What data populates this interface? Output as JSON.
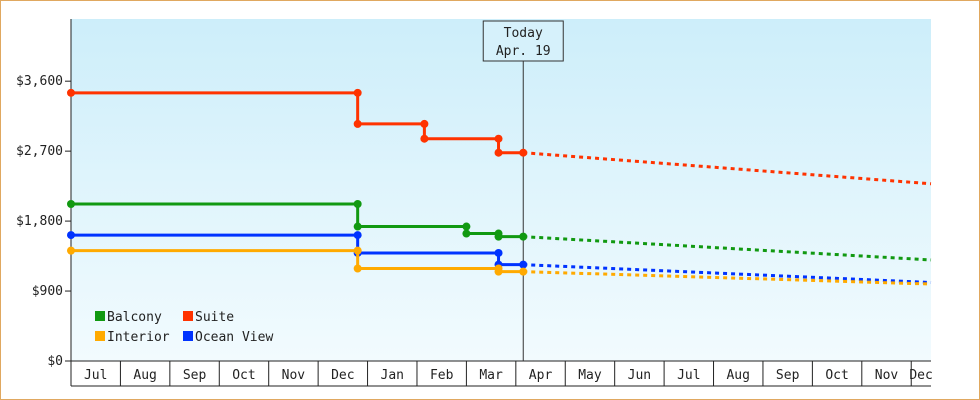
{
  "chart_data": {
    "type": "line",
    "title": "",
    "xlabel": "",
    "ylabel": "",
    "x_ticks": [
      "Jul",
      "Aug",
      "Sep",
      "Oct",
      "Nov",
      "Dec",
      "Jan",
      "Feb",
      "Mar",
      "Apr",
      "May",
      "Jun",
      "Jul",
      "Aug",
      "Sep",
      "Oct",
      "Nov",
      "Dec"
    ],
    "x_range_months": [
      0,
      17.4
    ],
    "ylim": [
      0,
      4400
    ],
    "y_ticks": [
      0,
      900,
      1800,
      2700,
      3600
    ],
    "y_tick_labels": [
      "$0",
      "$900",
      "$1,800",
      "$2,700",
      "$3,600"
    ],
    "grid": false,
    "legend_position": "bottom-left",
    "today_marker": {
      "line1": "Today",
      "line2": "Apr. 19",
      "x_month": 9.15
    },
    "series": [
      {
        "name": "Suite",
        "color": "#ff3300",
        "points": [
          [
            0.0,
            3450
          ],
          [
            5.8,
            3450
          ],
          [
            5.8,
            3050
          ],
          [
            7.15,
            3050
          ],
          [
            7.15,
            2860
          ],
          [
            8.65,
            2860
          ],
          [
            8.65,
            2680
          ],
          [
            9.15,
            2680
          ]
        ],
        "projection": [
          [
            9.15,
            2680
          ],
          [
            17.4,
            2280
          ]
        ]
      },
      {
        "name": "Balcony",
        "color": "#119911",
        "points": [
          [
            0.0,
            2020
          ],
          [
            5.8,
            2020
          ],
          [
            5.8,
            1730
          ],
          [
            8.0,
            1730
          ],
          [
            8.0,
            1640
          ],
          [
            8.65,
            1640
          ],
          [
            8.65,
            1600
          ],
          [
            9.15,
            1600
          ]
        ],
        "projection": [
          [
            9.15,
            1600
          ],
          [
            17.4,
            1300
          ]
        ]
      },
      {
        "name": "Ocean View",
        "color": "#0033ff",
        "points": [
          [
            0.0,
            1620
          ],
          [
            5.8,
            1620
          ],
          [
            5.8,
            1390
          ],
          [
            8.65,
            1390
          ],
          [
            8.65,
            1240
          ],
          [
            9.15,
            1240
          ]
        ],
        "projection": [
          [
            9.15,
            1240
          ],
          [
            17.4,
            1010
          ]
        ]
      },
      {
        "name": "Interior",
        "color": "#ffaa00",
        "points": [
          [
            0.0,
            1420
          ],
          [
            5.8,
            1420
          ],
          [
            5.8,
            1190
          ],
          [
            8.65,
            1190
          ],
          [
            8.65,
            1150
          ],
          [
            9.15,
            1150
          ]
        ],
        "projection": [
          [
            9.15,
            1150
          ],
          [
            17.4,
            990
          ]
        ]
      }
    ],
    "legend_order": [
      "Balcony",
      "Suite",
      "Interior",
      "Ocean View"
    ]
  }
}
